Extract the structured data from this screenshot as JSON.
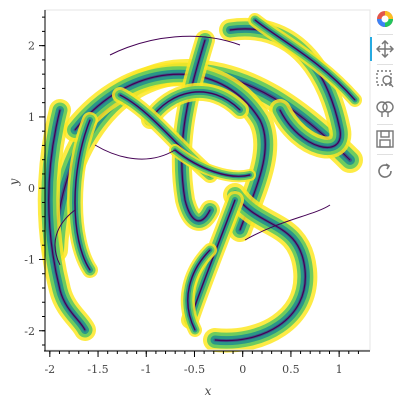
{
  "chart_data": {
    "type": "scatter",
    "title": "",
    "xlabel": "x",
    "ylabel": "y",
    "xlim": [
      -2.05,
      1.32
    ],
    "ylim": [
      -2.27,
      2.5
    ],
    "x_ticks": [
      {
        "value": -2,
        "label": "-2"
      },
      {
        "value": -1.5,
        "label": "-1.5"
      },
      {
        "value": -1,
        "label": "-1"
      },
      {
        "value": -0.5,
        "label": "-0.5"
      },
      {
        "value": 0,
        "label": "0"
      },
      {
        "value": 0.5,
        "label": "0.5"
      },
      {
        "value": 1,
        "label": "1"
      }
    ],
    "y_ticks": [
      {
        "value": -2,
        "label": "-2"
      },
      {
        "value": -1,
        "label": "-1"
      },
      {
        "value": 0,
        "label": "0"
      },
      {
        "value": 1,
        "label": "1"
      },
      {
        "value": 2,
        "label": "2"
      }
    ],
    "grid": false,
    "colormap": [
      "#440154",
      "#3b528b",
      "#21918c",
      "#5ec962",
      "#fde725"
    ],
    "description_of_marks": "dense attractor point cloud shaded by density (viridis)"
  },
  "toolbar": {
    "items": [
      {
        "name": "bokeh-logo-icon"
      },
      {
        "name": "pan-icon"
      },
      {
        "name": "box-zoom-icon"
      },
      {
        "name": "wheel-zoom-icon"
      },
      {
        "name": "save-icon"
      },
      {
        "name": "reset-icon"
      }
    ],
    "active_color": "#26aae1"
  }
}
